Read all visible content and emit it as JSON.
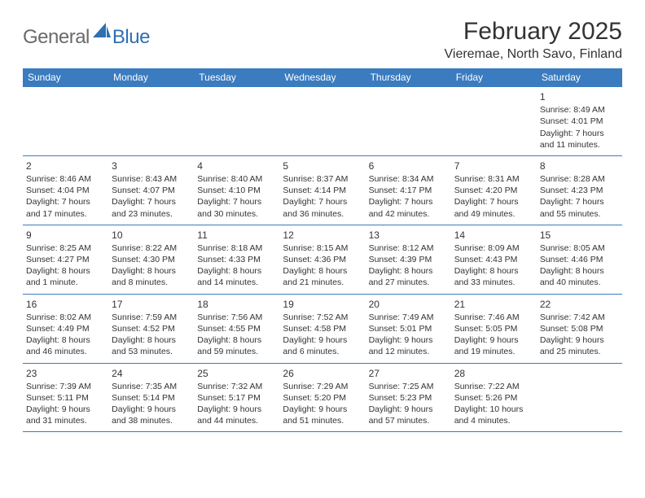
{
  "logo": {
    "general": "General",
    "blue": "Blue"
  },
  "header": {
    "month_title": "February 2025",
    "location": "Vieremae, North Savo, Finland"
  },
  "colors": {
    "header_bg": "#3b7bbf",
    "row_border": "#3b7bbf",
    "logo_gray": "#6a6a6a",
    "logo_blue": "#2f6fb3",
    "text": "#333333",
    "bg": "#ffffff"
  },
  "dow": [
    "Sunday",
    "Monday",
    "Tuesday",
    "Wednesday",
    "Thursday",
    "Friday",
    "Saturday"
  ],
  "weeks": [
    [
      {
        "blank": true
      },
      {
        "blank": true
      },
      {
        "blank": true
      },
      {
        "blank": true
      },
      {
        "blank": true
      },
      {
        "blank": true
      },
      {
        "day": "1",
        "sunrise": "Sunrise: 8:49 AM",
        "sunset": "Sunset: 4:01 PM",
        "daylight1": "Daylight: 7 hours",
        "daylight2": "and 11 minutes."
      }
    ],
    [
      {
        "day": "2",
        "sunrise": "Sunrise: 8:46 AM",
        "sunset": "Sunset: 4:04 PM",
        "daylight1": "Daylight: 7 hours",
        "daylight2": "and 17 minutes."
      },
      {
        "day": "3",
        "sunrise": "Sunrise: 8:43 AM",
        "sunset": "Sunset: 4:07 PM",
        "daylight1": "Daylight: 7 hours",
        "daylight2": "and 23 minutes."
      },
      {
        "day": "4",
        "sunrise": "Sunrise: 8:40 AM",
        "sunset": "Sunset: 4:10 PM",
        "daylight1": "Daylight: 7 hours",
        "daylight2": "and 30 minutes."
      },
      {
        "day": "5",
        "sunrise": "Sunrise: 8:37 AM",
        "sunset": "Sunset: 4:14 PM",
        "daylight1": "Daylight: 7 hours",
        "daylight2": "and 36 minutes."
      },
      {
        "day": "6",
        "sunrise": "Sunrise: 8:34 AM",
        "sunset": "Sunset: 4:17 PM",
        "daylight1": "Daylight: 7 hours",
        "daylight2": "and 42 minutes."
      },
      {
        "day": "7",
        "sunrise": "Sunrise: 8:31 AM",
        "sunset": "Sunset: 4:20 PM",
        "daylight1": "Daylight: 7 hours",
        "daylight2": "and 49 minutes."
      },
      {
        "day": "8",
        "sunrise": "Sunrise: 8:28 AM",
        "sunset": "Sunset: 4:23 PM",
        "daylight1": "Daylight: 7 hours",
        "daylight2": "and 55 minutes."
      }
    ],
    [
      {
        "day": "9",
        "sunrise": "Sunrise: 8:25 AM",
        "sunset": "Sunset: 4:27 PM",
        "daylight1": "Daylight: 8 hours",
        "daylight2": "and 1 minute."
      },
      {
        "day": "10",
        "sunrise": "Sunrise: 8:22 AM",
        "sunset": "Sunset: 4:30 PM",
        "daylight1": "Daylight: 8 hours",
        "daylight2": "and 8 minutes."
      },
      {
        "day": "11",
        "sunrise": "Sunrise: 8:18 AM",
        "sunset": "Sunset: 4:33 PM",
        "daylight1": "Daylight: 8 hours",
        "daylight2": "and 14 minutes."
      },
      {
        "day": "12",
        "sunrise": "Sunrise: 8:15 AM",
        "sunset": "Sunset: 4:36 PM",
        "daylight1": "Daylight: 8 hours",
        "daylight2": "and 21 minutes."
      },
      {
        "day": "13",
        "sunrise": "Sunrise: 8:12 AM",
        "sunset": "Sunset: 4:39 PM",
        "daylight1": "Daylight: 8 hours",
        "daylight2": "and 27 minutes."
      },
      {
        "day": "14",
        "sunrise": "Sunrise: 8:09 AM",
        "sunset": "Sunset: 4:43 PM",
        "daylight1": "Daylight: 8 hours",
        "daylight2": "and 33 minutes."
      },
      {
        "day": "15",
        "sunrise": "Sunrise: 8:05 AM",
        "sunset": "Sunset: 4:46 PM",
        "daylight1": "Daylight: 8 hours",
        "daylight2": "and 40 minutes."
      }
    ],
    [
      {
        "day": "16",
        "sunrise": "Sunrise: 8:02 AM",
        "sunset": "Sunset: 4:49 PM",
        "daylight1": "Daylight: 8 hours",
        "daylight2": "and 46 minutes."
      },
      {
        "day": "17",
        "sunrise": "Sunrise: 7:59 AM",
        "sunset": "Sunset: 4:52 PM",
        "daylight1": "Daylight: 8 hours",
        "daylight2": "and 53 minutes."
      },
      {
        "day": "18",
        "sunrise": "Sunrise: 7:56 AM",
        "sunset": "Sunset: 4:55 PM",
        "daylight1": "Daylight: 8 hours",
        "daylight2": "and 59 minutes."
      },
      {
        "day": "19",
        "sunrise": "Sunrise: 7:52 AM",
        "sunset": "Sunset: 4:58 PM",
        "daylight1": "Daylight: 9 hours",
        "daylight2": "and 6 minutes."
      },
      {
        "day": "20",
        "sunrise": "Sunrise: 7:49 AM",
        "sunset": "Sunset: 5:01 PM",
        "daylight1": "Daylight: 9 hours",
        "daylight2": "and 12 minutes."
      },
      {
        "day": "21",
        "sunrise": "Sunrise: 7:46 AM",
        "sunset": "Sunset: 5:05 PM",
        "daylight1": "Daylight: 9 hours",
        "daylight2": "and 19 minutes."
      },
      {
        "day": "22",
        "sunrise": "Sunrise: 7:42 AM",
        "sunset": "Sunset: 5:08 PM",
        "daylight1": "Daylight: 9 hours",
        "daylight2": "and 25 minutes."
      }
    ],
    [
      {
        "day": "23",
        "sunrise": "Sunrise: 7:39 AM",
        "sunset": "Sunset: 5:11 PM",
        "daylight1": "Daylight: 9 hours",
        "daylight2": "and 31 minutes."
      },
      {
        "day": "24",
        "sunrise": "Sunrise: 7:35 AM",
        "sunset": "Sunset: 5:14 PM",
        "daylight1": "Daylight: 9 hours",
        "daylight2": "and 38 minutes."
      },
      {
        "day": "25",
        "sunrise": "Sunrise: 7:32 AM",
        "sunset": "Sunset: 5:17 PM",
        "daylight1": "Daylight: 9 hours",
        "daylight2": "and 44 minutes."
      },
      {
        "day": "26",
        "sunrise": "Sunrise: 7:29 AM",
        "sunset": "Sunset: 5:20 PM",
        "daylight1": "Daylight: 9 hours",
        "daylight2": "and 51 minutes."
      },
      {
        "day": "27",
        "sunrise": "Sunrise: 7:25 AM",
        "sunset": "Sunset: 5:23 PM",
        "daylight1": "Daylight: 9 hours",
        "daylight2": "and 57 minutes."
      },
      {
        "day": "28",
        "sunrise": "Sunrise: 7:22 AM",
        "sunset": "Sunset: 5:26 PM",
        "daylight1": "Daylight: 10 hours",
        "daylight2": "and 4 minutes."
      },
      {
        "blank": true
      }
    ]
  ]
}
